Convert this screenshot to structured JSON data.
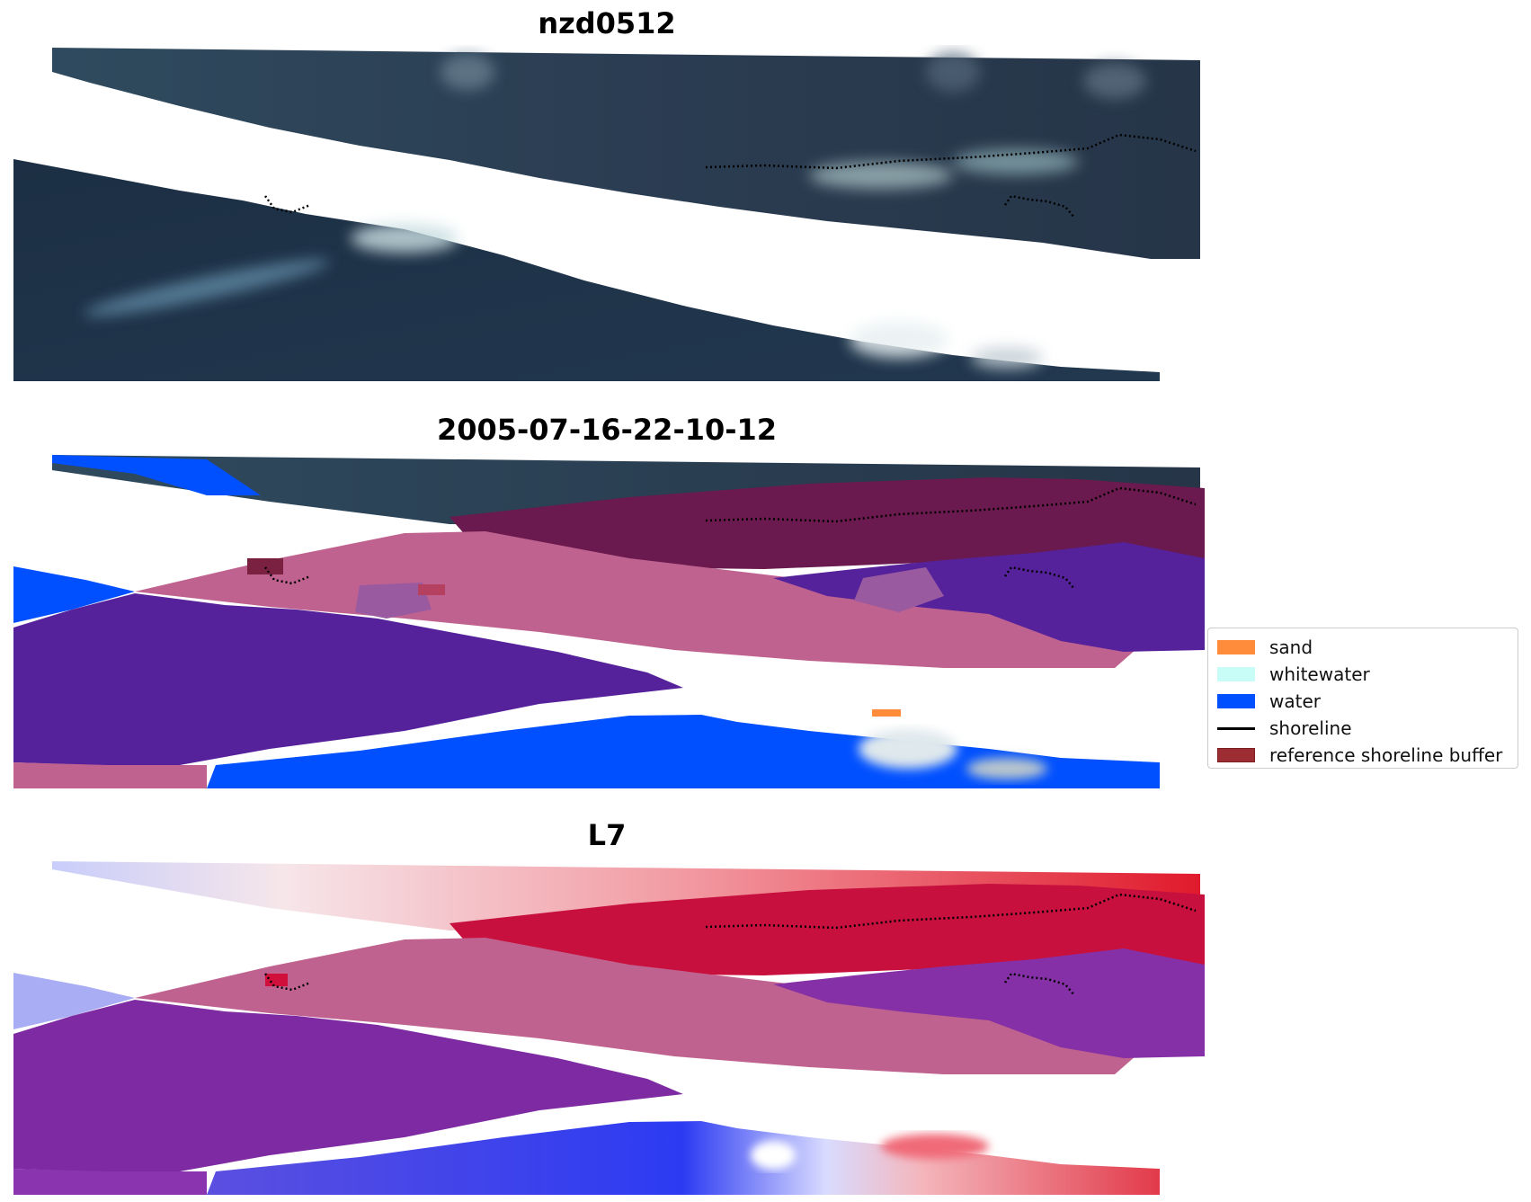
{
  "panels": [
    {
      "title": "nzd0512",
      "style": "rgb"
    },
    {
      "title": "2005-07-16-22-10-12",
      "style": "classified"
    },
    {
      "title": "L7",
      "style": "index"
    }
  ],
  "legend": {
    "items": [
      {
        "label": "sand",
        "color": "#ff8c3a",
        "kind": "patch"
      },
      {
        "label": "whitewater",
        "color": "#c8fcf6",
        "kind": "patch"
      },
      {
        "label": "water",
        "color": "#0050ff",
        "kind": "patch"
      },
      {
        "label": "shoreline",
        "color": "#000000",
        "kind": "line"
      },
      {
        "label": "reference shoreline buffer",
        "color": "#9b2d33",
        "kind": "patch",
        "edge": "#7a1e23"
      }
    ]
  },
  "colors": {
    "rgb_dark": "#1f3248",
    "rgb_light": "#d9e6ec",
    "water": "#0050ff",
    "buffer_pink": "#c0628f",
    "buffer_dark": "#6a1a4e",
    "class_purple": "#55229b",
    "index_red": "#e6142e",
    "index_blue": "#3b3fe8"
  }
}
